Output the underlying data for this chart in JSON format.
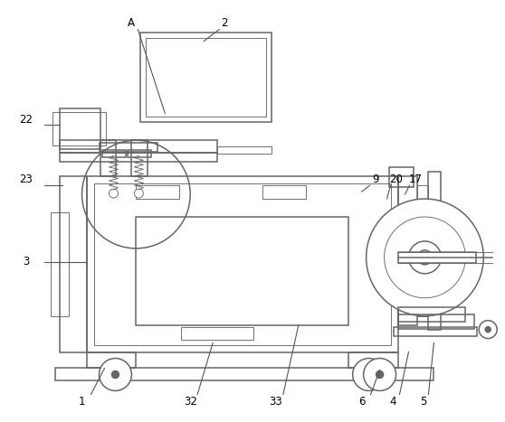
{
  "line_color": "#666666",
  "line_width": 1.1,
  "thin_line": 0.65,
  "ann_color": "#555555",
  "ann_lw": 0.8,
  "font_size": 8.5,
  "bg_color": "white"
}
